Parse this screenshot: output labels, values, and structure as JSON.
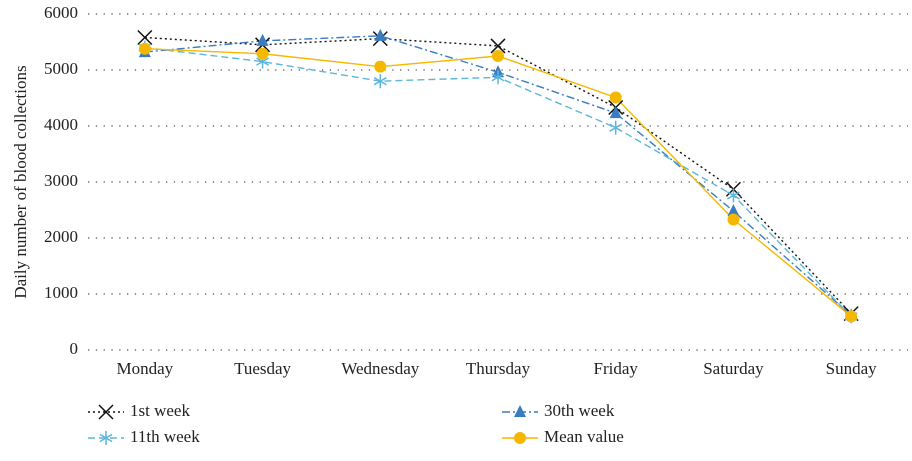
{
  "chart_data": {
    "type": "line",
    "ylabel": "Daily number of blood collections",
    "categories": [
      "Monday",
      "Tuesday",
      "Wednesday",
      "Thursday",
      "Friday",
      "Saturday",
      "Sunday"
    ],
    "series": [
      {
        "name": "1st week",
        "color": "#111111",
        "marker": "x",
        "dash": "2,3",
        "values": [
          5580,
          5450,
          5560,
          5430,
          4330,
          2870,
          650
        ]
      },
      {
        "name": "30th week",
        "color": "#3a7cc0",
        "marker": "triangle",
        "dash": "8,3,2,3",
        "values": [
          5320,
          5520,
          5610,
          4960,
          4230,
          2480,
          620
        ]
      },
      {
        "name": "11th week",
        "color": "#5cb6dc",
        "marker": "asterisk",
        "dash": "7,4",
        "values": [
          5400,
          5150,
          4800,
          4870,
          3970,
          2760,
          600
        ]
      },
      {
        "name": "Mean value",
        "color": "#f5b800",
        "marker": "circle",
        "dash": "",
        "values": [
          5380,
          5290,
          5060,
          5250,
          4510,
          2330,
          600
        ]
      }
    ],
    "ylim": [
      0,
      6000
    ],
    "yticks": [
      0,
      1000,
      2000,
      3000,
      4000,
      5000,
      6000
    ],
    "grid": true
  }
}
